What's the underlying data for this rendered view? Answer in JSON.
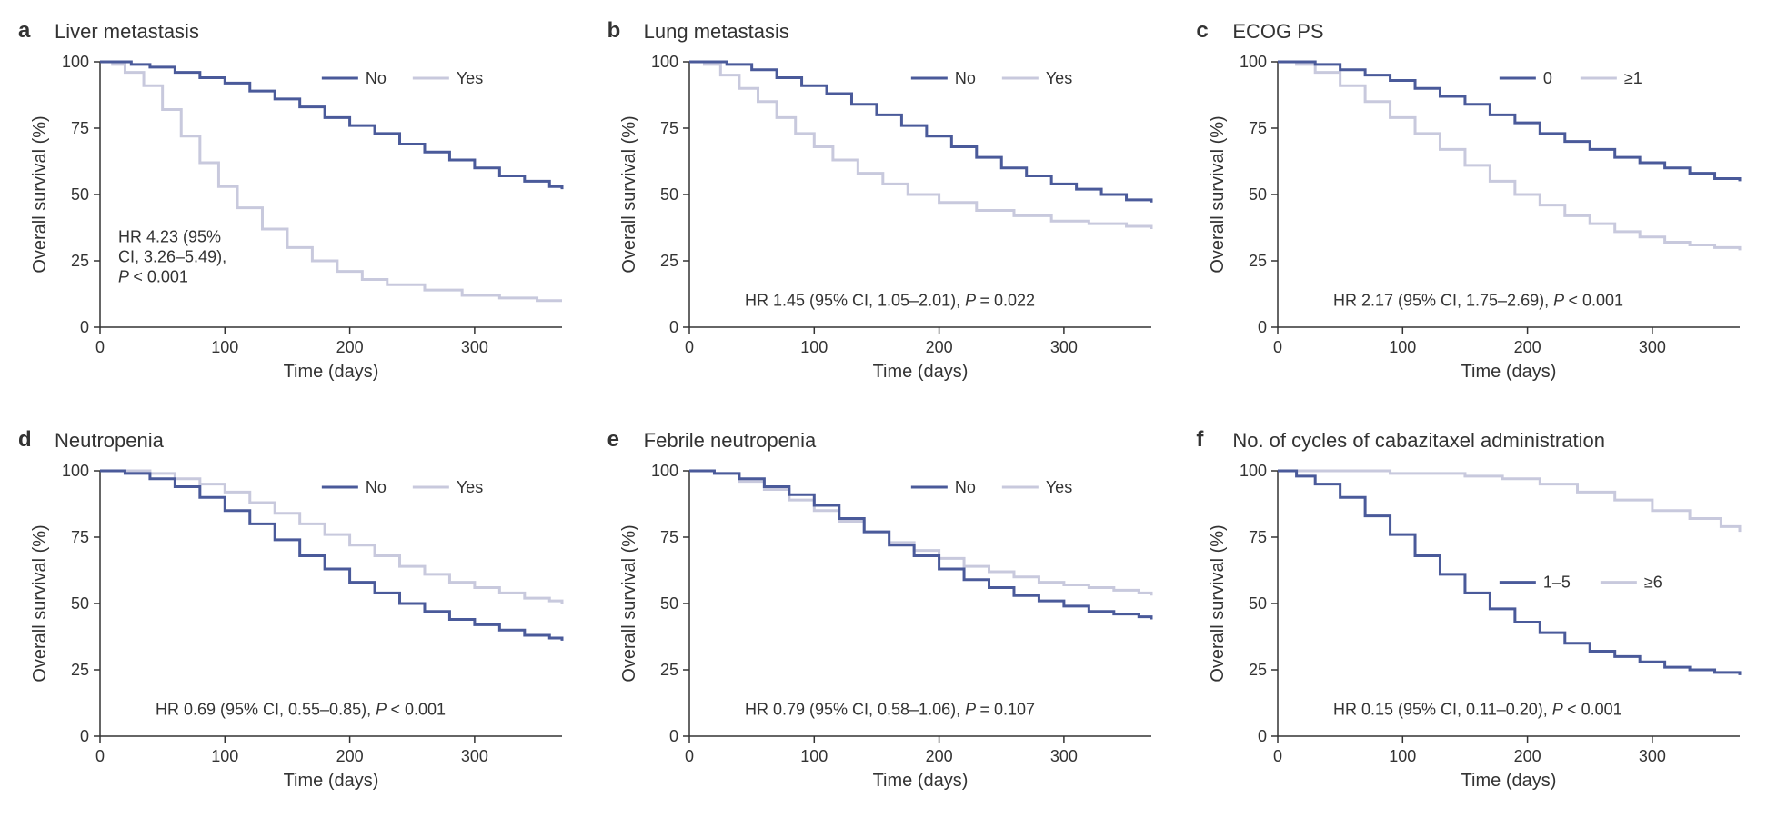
{
  "colors": {
    "no": "#4a5a9a",
    "yes": "#c8c9dd",
    "axis": "#333333",
    "bg": "#ffffff"
  },
  "axis": {
    "x_label": "Time (days)",
    "y_label": "Overall survival (%)",
    "x_ticks": [
      0,
      100,
      200,
      300
    ],
    "y_ticks": [
      0,
      25,
      50,
      75,
      100
    ],
    "xlim": [
      0,
      370
    ],
    "ylim": [
      0,
      100
    ]
  },
  "typography": {
    "panel_letter_fontsize": 24,
    "panel_title_fontsize": 22,
    "axis_title_fontsize": 20,
    "tick_fontsize": 18,
    "legend_fontsize": 18,
    "hr_fontsize": 18
  },
  "panels": [
    {
      "letter": "a",
      "title": "Liver metastasis",
      "legend": {
        "items": [
          {
            "label": "No",
            "color_key": "no"
          },
          {
            "label": "Yes",
            "color_key": "yes"
          }
        ],
        "pos": "top-right"
      },
      "hr_lines": [
        "HR 4.23 (95%",
        "CI, 3.26–5.49),",
        "P < 0.001"
      ],
      "hr_multiline": true,
      "series_no": [
        [
          0,
          100
        ],
        [
          10,
          100
        ],
        [
          25,
          99
        ],
        [
          40,
          98
        ],
        [
          60,
          96
        ],
        [
          80,
          94
        ],
        [
          100,
          92
        ],
        [
          120,
          89
        ],
        [
          140,
          86
        ],
        [
          160,
          83
        ],
        [
          180,
          79
        ],
        [
          200,
          76
        ],
        [
          220,
          73
        ],
        [
          240,
          69
        ],
        [
          260,
          66
        ],
        [
          280,
          63
        ],
        [
          300,
          60
        ],
        [
          320,
          57
        ],
        [
          340,
          55
        ],
        [
          360,
          53
        ],
        [
          370,
          52
        ]
      ],
      "series_yes": [
        [
          0,
          100
        ],
        [
          10,
          99
        ],
        [
          20,
          96
        ],
        [
          35,
          91
        ],
        [
          50,
          82
        ],
        [
          65,
          72
        ],
        [
          80,
          62
        ],
        [
          95,
          53
        ],
        [
          110,
          45
        ],
        [
          130,
          37
        ],
        [
          150,
          30
        ],
        [
          170,
          25
        ],
        [
          190,
          21
        ],
        [
          210,
          18
        ],
        [
          230,
          16
        ],
        [
          260,
          14
        ],
        [
          290,
          12
        ],
        [
          320,
          11
        ],
        [
          350,
          10
        ],
        [
          370,
          10
        ]
      ]
    },
    {
      "letter": "b",
      "title": "Lung metastasis",
      "legend": {
        "items": [
          {
            "label": "No",
            "color_key": "no"
          },
          {
            "label": "Yes",
            "color_key": "yes"
          }
        ],
        "pos": "top-right"
      },
      "hr_lines": [
        "HR 1.45 (95% CI, 1.05–2.01), P = 0.022"
      ],
      "hr_multiline": false,
      "series_no": [
        [
          0,
          100
        ],
        [
          15,
          100
        ],
        [
          30,
          99
        ],
        [
          50,
          97
        ],
        [
          70,
          94
        ],
        [
          90,
          91
        ],
        [
          110,
          88
        ],
        [
          130,
          84
        ],
        [
          150,
          80
        ],
        [
          170,
          76
        ],
        [
          190,
          72
        ],
        [
          210,
          68
        ],
        [
          230,
          64
        ],
        [
          250,
          60
        ],
        [
          270,
          57
        ],
        [
          290,
          54
        ],
        [
          310,
          52
        ],
        [
          330,
          50
        ],
        [
          350,
          48
        ],
        [
          370,
          47
        ]
      ],
      "series_yes": [
        [
          0,
          100
        ],
        [
          12,
          99
        ],
        [
          25,
          95
        ],
        [
          40,
          90
        ],
        [
          55,
          85
        ],
        [
          70,
          79
        ],
        [
          85,
          73
        ],
        [
          100,
          68
        ],
        [
          115,
          63
        ],
        [
          135,
          58
        ],
        [
          155,
          54
        ],
        [
          175,
          50
        ],
        [
          200,
          47
        ],
        [
          230,
          44
        ],
        [
          260,
          42
        ],
        [
          290,
          40
        ],
        [
          320,
          39
        ],
        [
          350,
          38
        ],
        [
          370,
          37
        ]
      ]
    },
    {
      "letter": "c",
      "title": "ECOG PS",
      "legend": {
        "items": [
          {
            "label": "0",
            "color_key": "no"
          },
          {
            "label": "≥1",
            "color_key": "yes"
          }
        ],
        "pos": "top-right"
      },
      "hr_lines": [
        "HR 2.17 (95% CI, 1.75–2.69), P < 0.001"
      ],
      "hr_multiline": false,
      "series_no": [
        [
          0,
          100
        ],
        [
          15,
          100
        ],
        [
          30,
          99
        ],
        [
          50,
          97
        ],
        [
          70,
          95
        ],
        [
          90,
          93
        ],
        [
          110,
          90
        ],
        [
          130,
          87
        ],
        [
          150,
          84
        ],
        [
          170,
          80
        ],
        [
          190,
          77
        ],
        [
          210,
          73
        ],
        [
          230,
          70
        ],
        [
          250,
          67
        ],
        [
          270,
          64
        ],
        [
          290,
          62
        ],
        [
          310,
          60
        ],
        [
          330,
          58
        ],
        [
          350,
          56
        ],
        [
          370,
          55
        ]
      ],
      "series_yes": [
        [
          0,
          100
        ],
        [
          15,
          99
        ],
        [
          30,
          96
        ],
        [
          50,
          91
        ],
        [
          70,
          85
        ],
        [
          90,
          79
        ],
        [
          110,
          73
        ],
        [
          130,
          67
        ],
        [
          150,
          61
        ],
        [
          170,
          55
        ],
        [
          190,
          50
        ],
        [
          210,
          46
        ],
        [
          230,
          42
        ],
        [
          250,
          39
        ],
        [
          270,
          36
        ],
        [
          290,
          34
        ],
        [
          310,
          32
        ],
        [
          330,
          31
        ],
        [
          350,
          30
        ],
        [
          370,
          29
        ]
      ]
    },
    {
      "letter": "d",
      "title": "Neutropenia",
      "legend": {
        "items": [
          {
            "label": "No",
            "color_key": "no"
          },
          {
            "label": "Yes",
            "color_key": "yes"
          }
        ],
        "pos": "top-right"
      },
      "hr_lines": [
        "HR 0.69 (95% CI, 0.55–0.85), P < 0.001"
      ],
      "hr_multiline": false,
      "series_no": [
        [
          0,
          100
        ],
        [
          20,
          99
        ],
        [
          40,
          97
        ],
        [
          60,
          94
        ],
        [
          80,
          90
        ],
        [
          100,
          85
        ],
        [
          120,
          80
        ],
        [
          140,
          74
        ],
        [
          160,
          68
        ],
        [
          180,
          63
        ],
        [
          200,
          58
        ],
        [
          220,
          54
        ],
        [
          240,
          50
        ],
        [
          260,
          47
        ],
        [
          280,
          44
        ],
        [
          300,
          42
        ],
        [
          320,
          40
        ],
        [
          340,
          38
        ],
        [
          360,
          37
        ],
        [
          370,
          36
        ]
      ],
      "series_yes": [
        [
          0,
          100
        ],
        [
          20,
          100
        ],
        [
          40,
          99
        ],
        [
          60,
          97
        ],
        [
          80,
          95
        ],
        [
          100,
          92
        ],
        [
          120,
          88
        ],
        [
          140,
          84
        ],
        [
          160,
          80
        ],
        [
          180,
          76
        ],
        [
          200,
          72
        ],
        [
          220,
          68
        ],
        [
          240,
          64
        ],
        [
          260,
          61
        ],
        [
          280,
          58
        ],
        [
          300,
          56
        ],
        [
          320,
          54
        ],
        [
          340,
          52
        ],
        [
          360,
          51
        ],
        [
          370,
          50
        ]
      ]
    },
    {
      "letter": "e",
      "title": "Febrile neutropenia",
      "legend": {
        "items": [
          {
            "label": "No",
            "color_key": "no"
          },
          {
            "label": "Yes",
            "color_key": "yes"
          }
        ],
        "pos": "top-right"
      },
      "hr_lines": [
        "HR 0.79 (95% CI, 0.58–1.06), P = 0.107"
      ],
      "hr_multiline": false,
      "series_no": [
        [
          0,
          100
        ],
        [
          20,
          99
        ],
        [
          40,
          97
        ],
        [
          60,
          94
        ],
        [
          80,
          91
        ],
        [
          100,
          87
        ],
        [
          120,
          82
        ],
        [
          140,
          77
        ],
        [
          160,
          72
        ],
        [
          180,
          68
        ],
        [
          200,
          63
        ],
        [
          220,
          59
        ],
        [
          240,
          56
        ],
        [
          260,
          53
        ],
        [
          280,
          51
        ],
        [
          300,
          49
        ],
        [
          320,
          47
        ],
        [
          340,
          46
        ],
        [
          360,
          45
        ],
        [
          370,
          44
        ]
      ],
      "series_yes": [
        [
          0,
          100
        ],
        [
          20,
          99
        ],
        [
          40,
          96
        ],
        [
          60,
          93
        ],
        [
          80,
          89
        ],
        [
          100,
          85
        ],
        [
          120,
          81
        ],
        [
          140,
          77
        ],
        [
          160,
          73
        ],
        [
          180,
          70
        ],
        [
          200,
          67
        ],
        [
          220,
          64
        ],
        [
          240,
          62
        ],
        [
          260,
          60
        ],
        [
          280,
          58
        ],
        [
          300,
          57
        ],
        [
          320,
          56
        ],
        [
          340,
          55
        ],
        [
          360,
          54
        ],
        [
          370,
          53
        ]
      ]
    },
    {
      "letter": "f",
      "title": "No. of cycles of cabazitaxel administration",
      "legend": {
        "items": [
          {
            "label": "1–5",
            "color_key": "no"
          },
          {
            "label": "≥6",
            "color_key": "yes"
          }
        ],
        "pos": "mid-right"
      },
      "hr_lines": [
        "HR 0.15 (95% CI, 0.11–0.20), P < 0.001"
      ],
      "hr_multiline": false,
      "series_no": [
        [
          0,
          100
        ],
        [
          15,
          98
        ],
        [
          30,
          95
        ],
        [
          50,
          90
        ],
        [
          70,
          83
        ],
        [
          90,
          76
        ],
        [
          110,
          68
        ],
        [
          130,
          61
        ],
        [
          150,
          54
        ],
        [
          170,
          48
        ],
        [
          190,
          43
        ],
        [
          210,
          39
        ],
        [
          230,
          35
        ],
        [
          250,
          32
        ],
        [
          270,
          30
        ],
        [
          290,
          28
        ],
        [
          310,
          26
        ],
        [
          330,
          25
        ],
        [
          350,
          24
        ],
        [
          370,
          23
        ]
      ],
      "series_yes": [
        [
          0,
          100
        ],
        [
          30,
          100
        ],
        [
          60,
          100
        ],
        [
          90,
          99
        ],
        [
          120,
          99
        ],
        [
          150,
          98
        ],
        [
          180,
          97
        ],
        [
          210,
          95
        ],
        [
          240,
          92
        ],
        [
          270,
          89
        ],
        [
          300,
          85
        ],
        [
          330,
          82
        ],
        [
          355,
          79
        ],
        [
          370,
          77
        ]
      ]
    }
  ]
}
